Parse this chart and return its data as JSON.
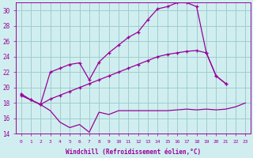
{
  "xlabel": "Windchill (Refroidissement éolien,°C)",
  "background_color": "#d0eef0",
  "grid_color": "#a0cccc",
  "line_color": "#990099",
  "xlim": [
    -0.5,
    23.5
  ],
  "ylim": [
    14,
    31
  ],
  "yticks": [
    14,
    16,
    18,
    20,
    22,
    24,
    26,
    28,
    30
  ],
  "xticks": [
    0,
    1,
    2,
    3,
    4,
    5,
    6,
    7,
    8,
    9,
    10,
    11,
    12,
    13,
    14,
    15,
    16,
    17,
    18,
    19,
    20,
    21,
    22,
    23
  ],
  "line1_y": [
    19.0,
    18.4,
    17.8,
    17.0,
    15.5,
    14.8,
    15.2,
    14.2,
    16.8,
    16.5,
    17.0,
    17.0,
    17.0,
    17.0,
    17.0,
    17.0,
    17.1,
    17.2,
    17.1,
    17.2,
    17.1,
    17.2,
    17.5,
    18.0
  ],
  "line2_y": [
    19.0,
    18.4,
    17.8,
    18.5,
    19.0,
    19.5,
    20.0,
    20.5,
    21.0,
    21.5,
    22.0,
    22.5,
    23.0,
    23.5,
    24.0,
    24.3,
    24.5,
    24.7,
    24.8,
    24.5,
    21.5,
    20.5,
    null,
    null
  ],
  "line3_y": [
    19.2,
    18.4,
    17.8,
    22.0,
    22.5,
    23.0,
    23.2,
    21.0,
    23.3,
    24.5,
    25.5,
    26.5,
    27.2,
    28.8,
    30.2,
    30.5,
    31.0,
    31.0,
    30.5,
    24.5,
    21.5,
    20.5,
    null,
    null
  ]
}
